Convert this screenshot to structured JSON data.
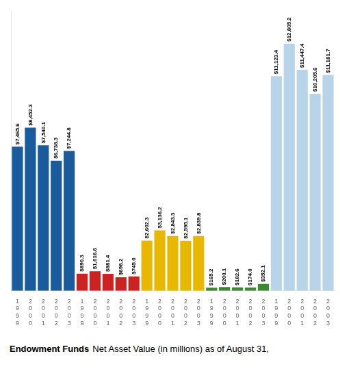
{
  "chart_data": {
    "type": "bar",
    "categories": [
      "1999",
      "2000",
      "2001",
      "2002",
      "2003",
      "1999",
      "2000",
      "2001",
      "2002",
      "2003",
      "1999",
      "2000",
      "2001",
      "2002",
      "2003",
      "1999",
      "2000",
      "2001",
      "2002",
      "2003",
      "1999",
      "2000",
      "2001",
      "2002",
      "2003"
    ],
    "values": [
      7465.6,
      8452.3,
      7540.1,
      6738.3,
      7244.8,
      890.3,
      1016.6,
      881.4,
      698.2,
      745.0,
      2602.3,
      3136.2,
      2843.3,
      2595.1,
      2839.8,
      165.2,
      200.1,
      182.6,
      174.0,
      352.1,
      11123.4,
      12805.2,
      11447.4,
      10205.6,
      11181.7
    ],
    "value_labels": [
      "$7,465.6",
      "$8,452.3",
      "$7,540.1",
      "$6,738.3",
      "$7,244.8",
      "$890.3",
      "$1,016.6",
      "$881.4",
      "$698.2",
      "$745.0",
      "$2,602.3",
      "$3,136.2",
      "$2,843.3",
      "$2,595.1",
      "$2,839.8",
      "$165.2",
      "$200.1",
      "$182.6",
      "$174.0",
      "$352.1",
      "$11,123.4",
      "$12,805.2",
      "$11,447.4",
      "$10,205.6",
      "$11,181.7"
    ],
    "colors": [
      "#1a5b9e",
      "#1a5b9e",
      "#1a5b9e",
      "#1a5b9e",
      "#1a5b9e",
      "#cc2222",
      "#cc2222",
      "#cc2222",
      "#cc2222",
      "#cc2222",
      "#e8b800",
      "#e8b800",
      "#e8b800",
      "#e8b800",
      "#e8b800",
      "#3a8a2e",
      "#3a8a2e",
      "#3a8a2e",
      "#3a8a2e",
      "#3a8a2e",
      "#b8d4e8",
      "#b8d4e8",
      "#b8d4e8",
      "#b8d4e8",
      "#b8d4e8"
    ],
    "data_labels": true,
    "ylim": [
      0,
      14500
    ],
    "tick_labels": "x",
    "grid": false,
    "annotations": [
      "Endowment Funds",
      "Net Asset Value (in millions) as of August 31,"
    ]
  }
}
